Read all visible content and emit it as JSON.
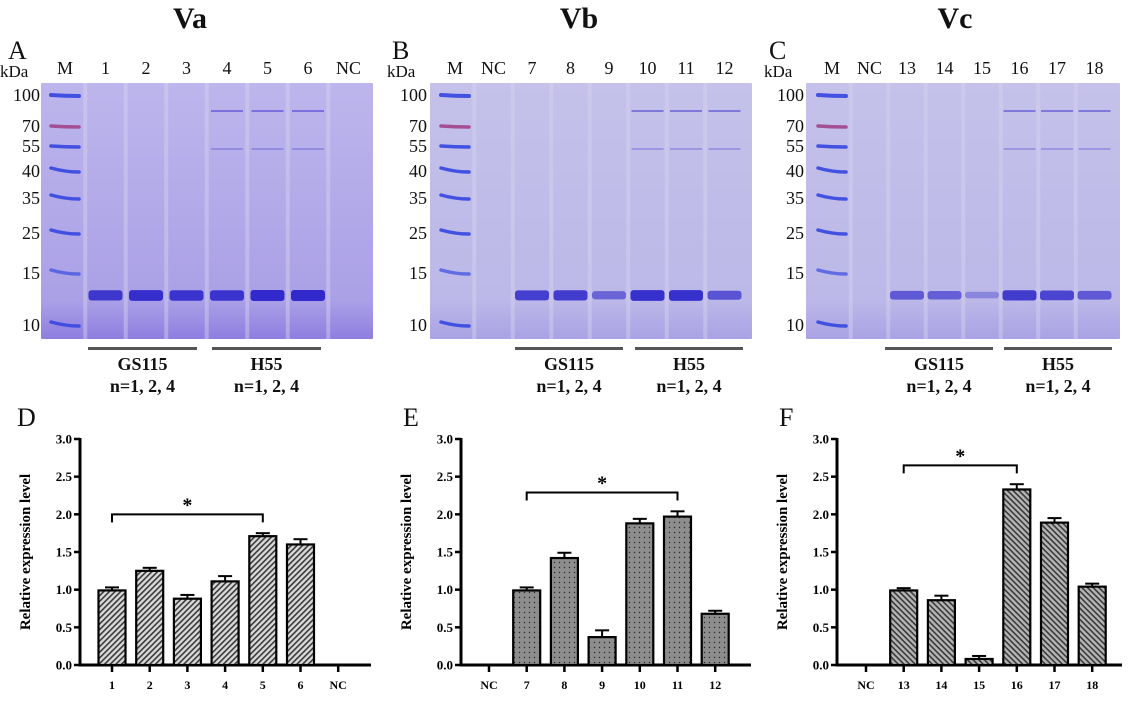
{
  "gels": [
    {
      "id": "A",
      "group_title": "Va",
      "panel_letter": "A",
      "kda_label": "kDa",
      "lanes": [
        "M",
        "1",
        "2",
        "3",
        "4",
        "5",
        "6",
        "NC"
      ],
      "marker_kda": [
        "100",
        "70",
        "55",
        "40",
        "35",
        "25",
        "15",
        "10"
      ],
      "strain_groups": [
        {
          "name": "GS115",
          "subtitle": "n=1, 2, 4"
        },
        {
          "name": "H55",
          "subtitle": "n=1, 2, 4"
        }
      ],
      "band_intensity": [
        0,
        0.85,
        0.95,
        0.9,
        0.9,
        1.0,
        1.0,
        0
      ]
    },
    {
      "id": "B",
      "group_title": "Vb",
      "panel_letter": "B",
      "kda_label": "kDa",
      "lanes": [
        "M",
        "NC",
        "7",
        "8",
        "9",
        "10",
        "11",
        "12"
      ],
      "marker_kda": [
        "100",
        "70",
        "55",
        "40",
        "35",
        "25",
        "15",
        "10"
      ],
      "strain_groups": [
        {
          "name": "GS115",
          "subtitle": "n=1, 2, 4"
        },
        {
          "name": "H55",
          "subtitle": "n=1, 2, 4"
        }
      ],
      "band_intensity": [
        0,
        0,
        0.8,
        0.85,
        0.45,
        0.95,
        0.95,
        0.6
      ]
    },
    {
      "id": "C",
      "group_title": "Vc",
      "panel_letter": "C",
      "kda_label": "kDa",
      "lanes": [
        "M",
        "NC",
        "13",
        "14",
        "15",
        "16",
        "17",
        "18"
      ],
      "marker_kda": [
        "100",
        "70",
        "55",
        "40",
        "35",
        "25",
        "15",
        "10"
      ],
      "strain_groups": [
        {
          "name": "GS115",
          "subtitle": "n=1, 2, 4"
        },
        {
          "name": "H55",
          "subtitle": "n=1, 2, 4"
        }
      ],
      "band_intensity": [
        0,
        0,
        0.55,
        0.5,
        0.12,
        0.85,
        0.75,
        0.55
      ]
    }
  ],
  "colors": {
    "gel_bg": "#b9b4e8",
    "band": "#2a23c9",
    "marker": "#3b4be0",
    "marker_70": "#a2498f",
    "bar_fill": "#a9a9a9",
    "bar_fill_dark": "#8a8a8a",
    "axis": "#000000"
  },
  "chart_data": [
    {
      "type": "bar",
      "panel_letter": "D",
      "title": "",
      "xlabel": "",
      "ylabel": "Relative expression level",
      "ylim": [
        0,
        3.0
      ],
      "yticks": [
        "0.0",
        "0.5",
        "1.0",
        "1.5",
        "2.0",
        "2.5",
        "3.0"
      ],
      "categories": [
        "1",
        "2",
        "3",
        "4",
        "5",
        "6",
        "NC"
      ],
      "values": [
        0.99,
        1.25,
        0.88,
        1.11,
        1.71,
        1.6,
        0
      ],
      "errors": [
        0.04,
        0.04,
        0.05,
        0.07,
        0.04,
        0.07,
        0
      ],
      "pattern": "diagonal-back",
      "significance": {
        "from": "1",
        "to": "5",
        "label": "*"
      },
      "grid": false,
      "legend": "none"
    },
    {
      "type": "bar",
      "panel_letter": "E",
      "title": "",
      "xlabel": "",
      "ylabel": "Relative expression level",
      "ylim": [
        0,
        3.0
      ],
      "yticks": [
        "0.0",
        "0.5",
        "1.0",
        "1.5",
        "2.0",
        "2.5",
        "3.0"
      ],
      "categories": [
        "NC",
        "7",
        "8",
        "9",
        "10",
        "11",
        "12"
      ],
      "values": [
        0,
        0.99,
        1.42,
        0.37,
        1.88,
        1.97,
        0.68
      ],
      "errors": [
        0,
        0.04,
        0.07,
        0.09,
        0.06,
        0.07,
        0.04
      ],
      "pattern": "dots",
      "significance": {
        "from": "7",
        "to": "11",
        "label": "*"
      },
      "grid": false,
      "legend": "none"
    },
    {
      "type": "bar",
      "panel_letter": "F",
      "title": "",
      "xlabel": "",
      "ylabel": "Relative expression level",
      "ylim": [
        0,
        3.0
      ],
      "yticks": [
        "0.0",
        "0.5",
        "1.0",
        "1.5",
        "2.0",
        "2.5",
        "3.0"
      ],
      "categories": [
        "NC",
        "13",
        "14",
        "15",
        "16",
        "17",
        "18"
      ],
      "values": [
        0,
        0.99,
        0.86,
        0.08,
        2.33,
        1.89,
        1.04
      ],
      "errors": [
        0,
        0.03,
        0.06,
        0.04,
        0.07,
        0.06,
        0.04
      ],
      "pattern": "diagonal-forward",
      "significance": {
        "from": "13",
        "to": "16",
        "label": "*"
      },
      "grid": false,
      "legend": "none"
    }
  ]
}
